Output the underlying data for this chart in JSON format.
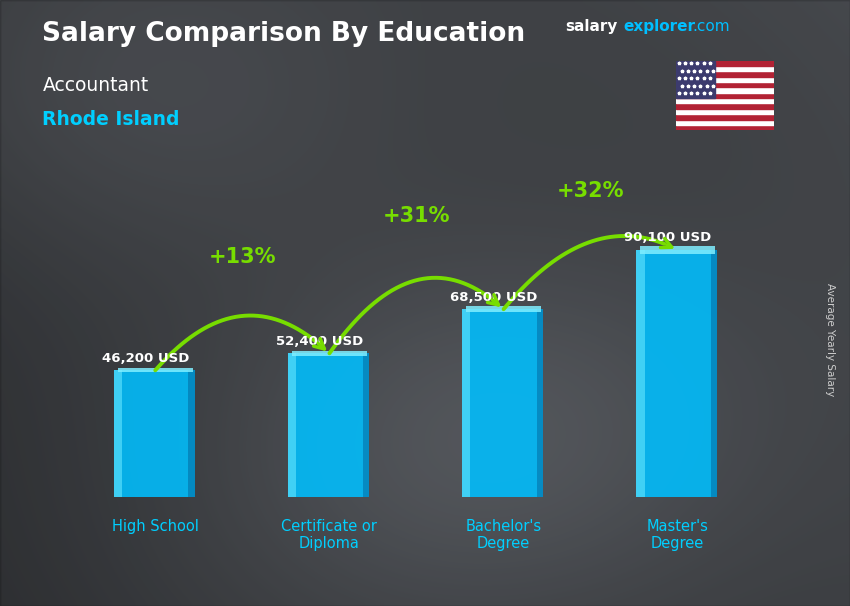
{
  "title": "Salary Comparison By Education",
  "subtitle_job": "Accountant",
  "subtitle_location": "Rhode Island",
  "ylabel": "Average Yearly Salary",
  "categories": [
    "High School",
    "Certificate or\nDiploma",
    "Bachelor's\nDegree",
    "Master's\nDegree"
  ],
  "values": [
    46200,
    52400,
    68500,
    90100
  ],
  "value_labels": [
    "46,200 USD",
    "52,400 USD",
    "68,500 USD",
    "90,100 USD"
  ],
  "pct_changes": [
    "+13%",
    "+31%",
    "+32%"
  ],
  "bar_color_main": "#00BFFF",
  "bar_color_light": "#40D8FF",
  "bar_color_dark": "#0090CC",
  "bar_color_top": "#80EEFF",
  "arrow_color": "#77DD00",
  "pct_color": "#77DD00",
  "title_color": "#FFFFFF",
  "subtitle_job_color": "#FFFFFF",
  "subtitle_loc_color": "#00CFFF",
  "value_label_color": "#FFFFFF",
  "xlabel_color": "#00CFFF",
  "brand_salary_color": "#FFFFFF",
  "brand_explorer_color": "#00BFFF",
  "ylabel_color": "#CCCCCC",
  "ylim": [
    0,
    115000
  ],
  "bg_color": "#444444"
}
